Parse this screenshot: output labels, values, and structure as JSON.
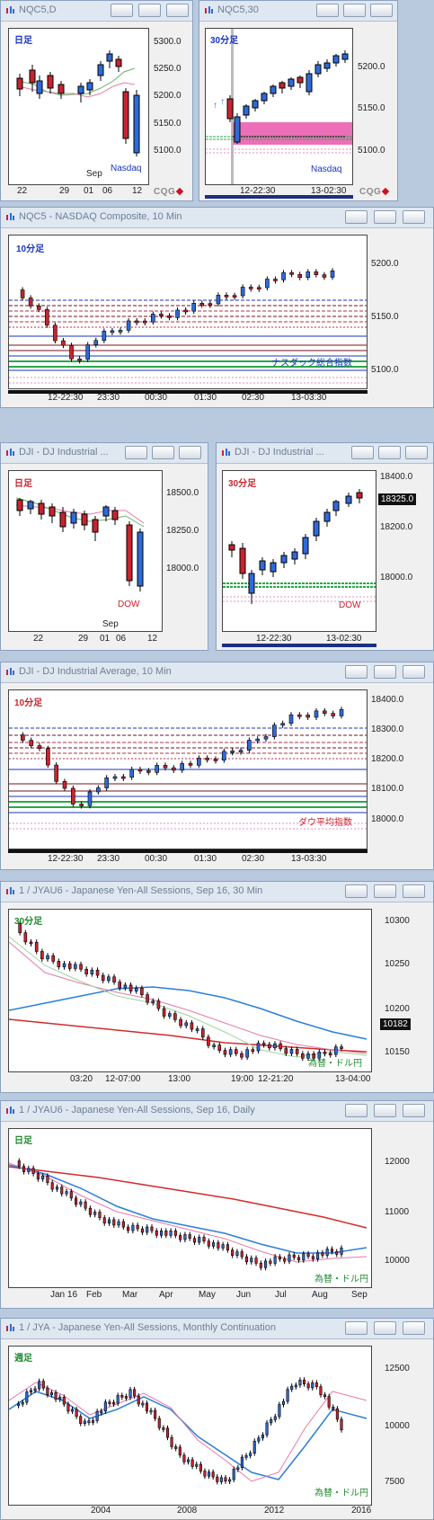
{
  "colors": {
    "bg": "#b9c9de",
    "up": "#2f6ad9",
    "down": "#c9232e",
    "bull_border": "#1d2a6b"
  },
  "windows": [
    {
      "id": "w1",
      "title": "NQC5,D",
      "timeframe": "日足",
      "tf_color": "#1a35c0",
      "label": "Nasdaq",
      "label_color": "#1a35c0",
      "yticks": [
        "5300.0",
        "5250.0",
        "5200.0",
        "5150.0",
        "5100.0"
      ],
      "xticks": [
        "22",
        "29",
        "01",
        "06",
        "12"
      ],
      "xtop": [
        "Sep"
      ],
      "price_badge": ""
    },
    {
      "id": "w2",
      "title": "NQC5,30",
      "timeframe": "30分足",
      "tf_color": "#1a35c0",
      "label": "Nasdaq",
      "label_color": "#1a35c0",
      "yticks": [
        "5200.0",
        "5150.0",
        "5100.0"
      ],
      "xticks": [
        "12-22:30",
        "13-02:30"
      ],
      "xtop": [],
      "price_badge": ""
    },
    {
      "id": "w3",
      "title": "NQC5 - NASDAQ Composite, 10 Min",
      "timeframe": "10分足",
      "tf_color": "#1a35c0",
      "label": "ナスダック総合指数",
      "label_color": "#1a35c0",
      "yticks": [
        "5200.0",
        "5150.0",
        "5100.0"
      ],
      "xticks": [
        "12-22:30",
        "23:30",
        "00:30",
        "01:30",
        "02:30",
        "13-03:30"
      ],
      "xtop": [],
      "price_badge": ""
    },
    {
      "id": "w4",
      "title": "DJI - DJ Industrial ...",
      "timeframe": "日足",
      "tf_color": "#c9232e",
      "label": "DOW",
      "label_color": "#c9232e",
      "yticks": [
        "18500.0",
        "18250.0",
        "18000.0"
      ],
      "xticks": [
        "22",
        "29",
        "01",
        "06",
        "12"
      ],
      "xtop": [
        "Sep"
      ],
      "price_badge": ""
    },
    {
      "id": "w5",
      "title": "DJI - DJ Industrial ...",
      "timeframe": "30分足",
      "tf_color": "#c9232e",
      "label": "DOW",
      "label_color": "#c9232e",
      "yticks": [
        "18400.0",
        "18200.0",
        "18000.0"
      ],
      "xticks": [
        "12-22:30",
        "13-02:30"
      ],
      "xtop": [],
      "price_badge": "18325.0"
    },
    {
      "id": "w6",
      "title": "DJI - DJ Industrial Average, 10 Min",
      "timeframe": "10分足",
      "tf_color": "#c9232e",
      "label": "ダウ平均指数",
      "label_color": "#c9232e",
      "yticks": [
        "18400.0",
        "18300.0",
        "18200.0",
        "18100.0",
        "18000.0"
      ],
      "xticks": [
        "12-22:30",
        "23:30",
        "00:30",
        "01:30",
        "02:30",
        "13-03:30"
      ],
      "xtop": [],
      "price_badge": ""
    },
    {
      "id": "w7",
      "title": "1 / JYAU6 - Japanese Yen-All Sessions, Sep 16, 30 Min",
      "timeframe": "30分足",
      "tf_color": "#1f8a2e",
      "label": "為替・ドル円",
      "label_color": "#1f8a2e",
      "yticks": [
        "10300",
        "10250",
        "10200",
        "10150"
      ],
      "xticks": [
        "03:20",
        "12-07:00",
        "13:00",
        "19:00",
        "12-21:20",
        "13-04:00"
      ],
      "xtop": [],
      "price_badge": "10182"
    },
    {
      "id": "w8",
      "title": "1 / JYAU6 - Japanese Yen-All Sessions, Sep 16, Daily",
      "timeframe": "日足",
      "tf_color": "#1f8a2e",
      "label": "為替・ドル円",
      "label_color": "#1f8a2e",
      "yticks": [
        "12000",
        "11000",
        "10000"
      ],
      "xticks": [
        "Jan 16",
        "Feb",
        "Mar",
        "Apr",
        "May",
        "Jun",
        "Jul",
        "Aug",
        "Sep"
      ],
      "xtop": [],
      "price_badge": ""
    },
    {
      "id": "w9",
      "title": "1 / JYA - Japanese Yen-All Sessions, Monthly Continuation",
      "timeframe": "週足",
      "tf_color": "#1f8a2e",
      "label": "為替・ドル円",
      "label_color": "#1f8a2e",
      "yticks": [
        "12500",
        "10000",
        "7500"
      ],
      "xticks": [
        "2004",
        "2008",
        "2012",
        "2016"
      ],
      "xtop": [],
      "price_badge": ""
    }
  ],
  "branding": "CQG"
}
